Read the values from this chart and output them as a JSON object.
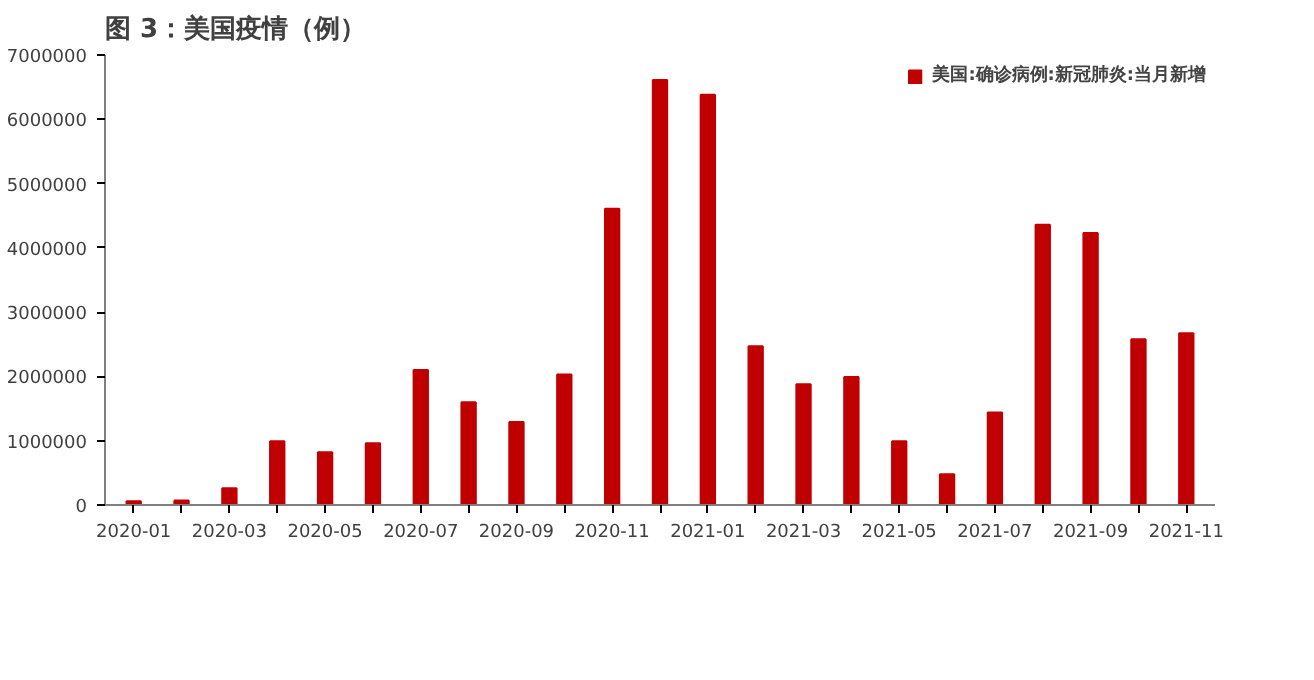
{
  "chart_data": {
    "type": "bar",
    "title": "图 3：美国疫情（例）",
    "categories": [
      "2020-01",
      null,
      "2020-03",
      null,
      "2020-05",
      null,
      "2020-07",
      null,
      "2020-09",
      null,
      "2020-11",
      null,
      "2021-01",
      null,
      "2021-03",
      null,
      "2021-05",
      null,
      "2021-07",
      null,
      "2021-09",
      null,
      "2021-11"
    ],
    "series": [
      {
        "name": "美国:确诊病例:新冠肺炎:当月新增",
        "color": "#c00000",
        "values": [
          60000,
          70000,
          260000,
          990000,
          820000,
          960000,
          2100000,
          1600000,
          1290000,
          2030000,
          4610000,
          6610000,
          6380000,
          2470000,
          1880000,
          1990000,
          990000,
          480000,
          1440000,
          4360000,
          4230000,
          2580000,
          2670000
        ]
      }
    ],
    "ylim": [
      0,
      7000000
    ],
    "yticks": [
      0,
      1000000,
      2000000,
      3000000,
      4000000,
      5000000,
      6000000,
      7000000
    ],
    "grid": false,
    "legend": "top right"
  }
}
